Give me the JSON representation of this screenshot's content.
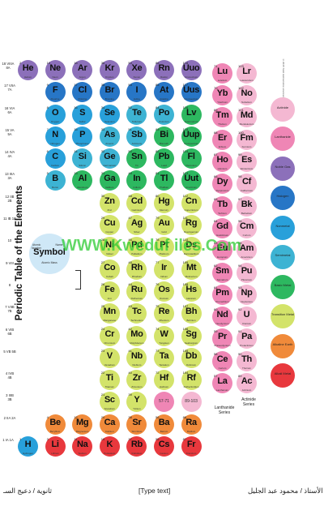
{
  "title": "Periodic Table of the Elements",
  "copyright": "©2015 Todd Helmenstine sciencenotes.org",
  "watermark": "WWW.Kweduf iles.Com",
  "key": {
    "symbol": "Symbol",
    "atomic_number": "Atomic Number",
    "name": "Name",
    "mass": "Atomic Mass"
  },
  "colors": {
    "alkali": "#e8383d",
    "alkaline": "#f08a3a",
    "transition": "#d3e36a",
    "basic_metal": "#2db860",
    "semimetal": "#3db3d3",
    "nonmetal": "#28a0da",
    "halogen": "#2776c6",
    "noble": "#8c70ba",
    "lanthanide": "#ef86b5",
    "actinide": "#f4b8d2",
    "unknown": "#5d87c5"
  },
  "group_labels": [
    {
      "col": 1,
      "text": "1 IA 1A"
    },
    {
      "col": 2,
      "text": "2 IIA 2A"
    },
    {
      "col": 3,
      "text": "3 IIIB 3B"
    },
    {
      "col": 4,
      "text": "4 IVB 4B"
    },
    {
      "col": 5,
      "text": "5 VB 5B"
    },
    {
      "col": 6,
      "text": "6 VIB 6B"
    },
    {
      "col": 7,
      "text": "7 VIIB 7B"
    },
    {
      "col": 8,
      "text": "8"
    },
    {
      "col": 9,
      "text": "9 VIII"
    },
    {
      "col": 10,
      "text": "10"
    },
    {
      "col": 11,
      "text": "11 IB 1B"
    },
    {
      "col": 12,
      "text": "12 IIB 2B"
    },
    {
      "col": 13,
      "text": "13 IIIA 3A"
    },
    {
      "col": 14,
      "text": "14 IVA 4A"
    },
    {
      "col": 15,
      "text": "15 VA 5A"
    },
    {
      "col": 16,
      "text": "16 VIA 6A"
    },
    {
      "col": 17,
      "text": "17 VIIA 7A"
    },
    {
      "col": 18,
      "text": "18 VIIIA 8A"
    }
  ],
  "elements": [
    {
      "n": 1,
      "s": "H",
      "name": "Hydrogen",
      "p": 1,
      "g": 1,
      "c": "nonmetal"
    },
    {
      "n": 2,
      "s": "He",
      "name": "Helium",
      "p": 1,
      "g": 18,
      "c": "noble"
    },
    {
      "n": 3,
      "s": "Li",
      "name": "Lithium",
      "p": 2,
      "g": 1,
      "c": "alkali"
    },
    {
      "n": 4,
      "s": "Be",
      "name": "Beryllium",
      "p": 2,
      "g": 2,
      "c": "alkaline"
    },
    {
      "n": 5,
      "s": "B",
      "name": "Boron",
      "p": 2,
      "g": 13,
      "c": "semimetal"
    },
    {
      "n": 6,
      "s": "C",
      "name": "Carbon",
      "p": 2,
      "g": 14,
      "c": "nonmetal"
    },
    {
      "n": 7,
      "s": "N",
      "name": "Nitrogen",
      "p": 2,
      "g": 15,
      "c": "nonmetal"
    },
    {
      "n": 8,
      "s": "O",
      "name": "Oxygen",
      "p": 2,
      "g": 16,
      "c": "nonmetal"
    },
    {
      "n": 9,
      "s": "F",
      "name": "Fluorine",
      "p": 2,
      "g": 17,
      "c": "halogen"
    },
    {
      "n": 10,
      "s": "Ne",
      "name": "Neon",
      "p": 2,
      "g": 18,
      "c": "noble"
    },
    {
      "n": 11,
      "s": "Na",
      "name": "Sodium",
      "p": 3,
      "g": 1,
      "c": "alkali"
    },
    {
      "n": 12,
      "s": "Mg",
      "name": "Magnesium",
      "p": 3,
      "g": 2,
      "c": "alkaline"
    },
    {
      "n": 13,
      "s": "Al",
      "name": "Aluminum",
      "p": 3,
      "g": 13,
      "c": "basic_metal"
    },
    {
      "n": 14,
      "s": "Si",
      "name": "Silicon",
      "p": 3,
      "g": 14,
      "c": "semimetal"
    },
    {
      "n": 15,
      "s": "P",
      "name": "Phosphorus",
      "p": 3,
      "g": 15,
      "c": "nonmetal"
    },
    {
      "n": 16,
      "s": "S",
      "name": "Sulfur",
      "p": 3,
      "g": 16,
      "c": "nonmetal"
    },
    {
      "n": 17,
      "s": "Cl",
      "name": "Chlorine",
      "p": 3,
      "g": 17,
      "c": "halogen"
    },
    {
      "n": 18,
      "s": "Ar",
      "name": "Argon",
      "p": 3,
      "g": 18,
      "c": "noble"
    },
    {
      "n": 19,
      "s": "K",
      "name": "Potassium",
      "p": 4,
      "g": 1,
      "c": "alkali"
    },
    {
      "n": 20,
      "s": "Ca",
      "name": "Calcium",
      "p": 4,
      "g": 2,
      "c": "alkaline"
    },
    {
      "n": 21,
      "s": "Sc",
      "name": "Scandium",
      "p": 4,
      "g": 3,
      "c": "transition"
    },
    {
      "n": 22,
      "s": "Ti",
      "name": "Titanium",
      "p": 4,
      "g": 4,
      "c": "transition"
    },
    {
      "n": 23,
      "s": "V",
      "name": "Vanadium",
      "p": 4,
      "g": 5,
      "c": "transition"
    },
    {
      "n": 24,
      "s": "Cr",
      "name": "Chromium",
      "p": 4,
      "g": 6,
      "c": "transition"
    },
    {
      "n": 25,
      "s": "Mn",
      "name": "Manganese",
      "p": 4,
      "g": 7,
      "c": "transition"
    },
    {
      "n": 26,
      "s": "Fe",
      "name": "Iron",
      "p": 4,
      "g": 8,
      "c": "transition"
    },
    {
      "n": 27,
      "s": "Co",
      "name": "Cobalt",
      "p": 4,
      "g": 9,
      "c": "transition"
    },
    {
      "n": 28,
      "s": "Ni",
      "name": "Nickel",
      "p": 4,
      "g": 10,
      "c": "transition"
    },
    {
      "n": 29,
      "s": "Cu",
      "name": "Copper",
      "p": 4,
      "g": 11,
      "c": "transition"
    },
    {
      "n": 30,
      "s": "Zn",
      "name": "Zinc",
      "p": 4,
      "g": 12,
      "c": "transition"
    },
    {
      "n": 31,
      "s": "Ga",
      "name": "Gallium",
      "p": 4,
      "g": 13,
      "c": "basic_metal"
    },
    {
      "n": 32,
      "s": "Ge",
      "name": "Germanium",
      "p": 4,
      "g": 14,
      "c": "semimetal"
    },
    {
      "n": 33,
      "s": "As",
      "name": "Arsenic",
      "p": 4,
      "g": 15,
      "c": "semimetal"
    },
    {
      "n": 34,
      "s": "Se",
      "name": "Selenium",
      "p": 4,
      "g": 16,
      "c": "nonmetal"
    },
    {
      "n": 35,
      "s": "Br",
      "name": "Bromine",
      "p": 4,
      "g": 17,
      "c": "halogen"
    },
    {
      "n": 36,
      "s": "Kr",
      "name": "Krypton",
      "p": 4,
      "g": 18,
      "c": "noble"
    },
    {
      "n": 37,
      "s": "Rb",
      "name": "Rubidium",
      "p": 5,
      "g": 1,
      "c": "alkali"
    },
    {
      "n": 38,
      "s": "Sr",
      "name": "Strontium",
      "p": 5,
      "g": 2,
      "c": "alkaline"
    },
    {
      "n": 39,
      "s": "Y",
      "name": "Yttrium",
      "p": 5,
      "g": 3,
      "c": "transition"
    },
    {
      "n": 40,
      "s": "Zr",
      "name": "Zirconium",
      "p": 5,
      "g": 4,
      "c": "transition"
    },
    {
      "n": 41,
      "s": "Nb",
      "name": "Niobium",
      "p": 5,
      "g": 5,
      "c": "transition"
    },
    {
      "n": 42,
      "s": "Mo",
      "name": "Molybdenum",
      "p": 5,
      "g": 6,
      "c": "transition"
    },
    {
      "n": 43,
      "s": "Tc",
      "name": "Technetium",
      "p": 5,
      "g": 7,
      "c": "transition"
    },
    {
      "n": 44,
      "s": "Ru",
      "name": "Ruthenium",
      "p": 5,
      "g": 8,
      "c": "transition"
    },
    {
      "n": 45,
      "s": "Rh",
      "name": "Rhodium",
      "p": 5,
      "g": 9,
      "c": "transition"
    },
    {
      "n": 46,
      "s": "Pd",
      "name": "Palladium",
      "p": 5,
      "g": 10,
      "c": "transition"
    },
    {
      "n": 47,
      "s": "Ag",
      "name": "Silver",
      "p": 5,
      "g": 11,
      "c": "transition"
    },
    {
      "n": 48,
      "s": "Cd",
      "name": "Cadmium",
      "p": 5,
      "g": 12,
      "c": "transition"
    },
    {
      "n": 49,
      "s": "In",
      "name": "Indium",
      "p": 5,
      "g": 13,
      "c": "basic_metal"
    },
    {
      "n": 50,
      "s": "Sn",
      "name": "Tin",
      "p": 5,
      "g": 14,
      "c": "basic_metal"
    },
    {
      "n": 51,
      "s": "Sb",
      "name": "Antimony",
      "p": 5,
      "g": 15,
      "c": "semimetal"
    },
    {
      "n": 52,
      "s": "Te",
      "name": "Tellurium",
      "p": 5,
      "g": 16,
      "c": "semimetal"
    },
    {
      "n": 53,
      "s": "I",
      "name": "Iodine",
      "p": 5,
      "g": 17,
      "c": "halogen"
    },
    {
      "n": 54,
      "s": "Xe",
      "name": "Xenon",
      "p": 5,
      "g": 18,
      "c": "noble"
    },
    {
      "n": 55,
      "s": "Cs",
      "name": "Cesium",
      "p": 6,
      "g": 1,
      "c": "alkali"
    },
    {
      "n": 56,
      "s": "Ba",
      "name": "Barium",
      "p": 6,
      "g": 2,
      "c": "alkaline"
    },
    {
      "n": 72,
      "s": "Hf",
      "name": "Hafnium",
      "p": 6,
      "g": 4,
      "c": "transition"
    },
    {
      "n": 73,
      "s": "Ta",
      "name": "Tantalum",
      "p": 6,
      "g": 5,
      "c": "transition"
    },
    {
      "n": 74,
      "s": "W",
      "name": "Tungsten",
      "p": 6,
      "g": 6,
      "c": "transition"
    },
    {
      "n": 75,
      "s": "Re",
      "name": "Rhenium",
      "p": 6,
      "g": 7,
      "c": "transition"
    },
    {
      "n": 76,
      "s": "Os",
      "name": "Osmium",
      "p": 6,
      "g": 8,
      "c": "transition"
    },
    {
      "n": 77,
      "s": "Ir",
      "name": "Iridium",
      "p": 6,
      "g": 9,
      "c": "transition"
    },
    {
      "n": 78,
      "s": "Pt",
      "name": "Platinum",
      "p": 6,
      "g": 10,
      "c": "transition"
    },
    {
      "n": 79,
      "s": "Au",
      "name": "Gold",
      "p": 6,
      "g": 11,
      "c": "transition"
    },
    {
      "n": 80,
      "s": "Hg",
      "name": "Mercury",
      "p": 6,
      "g": 12,
      "c": "transition"
    },
    {
      "n": 81,
      "s": "Tl",
      "name": "Thallium",
      "p": 6,
      "g": 13,
      "c": "basic_metal"
    },
    {
      "n": 82,
      "s": "Pb",
      "name": "Lead",
      "p": 6,
      "g": 14,
      "c": "basic_metal"
    },
    {
      "n": 83,
      "s": "Bi",
      "name": "Bismuth",
      "p": 6,
      "g": 15,
      "c": "basic_metal"
    },
    {
      "n": 84,
      "s": "Po",
      "name": "Polonium",
      "p": 6,
      "g": 16,
      "c": "semimetal"
    },
    {
      "n": 85,
      "s": "At",
      "name": "Astatine",
      "p": 6,
      "g": 17,
      "c": "halogen"
    },
    {
      "n": 86,
      "s": "Rn",
      "name": "Radon",
      "p": 6,
      "g": 18,
      "c": "noble"
    },
    {
      "n": 87,
      "s": "Fr",
      "name": "Francium",
      "p": 7,
      "g": 1,
      "c": "alkali"
    },
    {
      "n": 88,
      "s": "Ra",
      "name": "Radium",
      "p": 7,
      "g": 2,
      "c": "alkaline"
    },
    {
      "n": 104,
      "s": "Rf",
      "name": "Rutherfordium",
      "p": 7,
      "g": 4,
      "c": "transition"
    },
    {
      "n": 105,
      "s": "Db",
      "name": "Dubnium",
      "p": 7,
      "g": 5,
      "c": "transition"
    },
    {
      "n": 106,
      "s": "Sg",
      "name": "Seaborgium",
      "p": 7,
      "g": 6,
      "c": "transition"
    },
    {
      "n": 107,
      "s": "Bh",
      "name": "Bohrium",
      "p": 7,
      "g": 7,
      "c": "transition"
    },
    {
      "n": 108,
      "s": "Hs",
      "name": "Hassium",
      "p": 7,
      "g": 8,
      "c": "transition"
    },
    {
      "n": 109,
      "s": "Mt",
      "name": "Meitnerium",
      "p": 7,
      "g": 9,
      "c": "transition"
    },
    {
      "n": 110,
      "s": "Ds",
      "name": "Darmstadtium",
      "p": 7,
      "g": 10,
      "c": "transition"
    },
    {
      "n": 111,
      "s": "Rg",
      "name": "Roentgenium",
      "p": 7,
      "g": 11,
      "c": "transition"
    },
    {
      "n": 112,
      "s": "Cn",
      "name": "Copernicium",
      "p": 7,
      "g": 12,
      "c": "transition"
    },
    {
      "n": 113,
      "s": "Uut",
      "name": "Ununtrium",
      "p": 7,
      "g": 13,
      "c": "basic_metal"
    },
    {
      "n": 114,
      "s": "Fl",
      "name": "Flerovium",
      "p": 7,
      "g": 14,
      "c": "basic_metal"
    },
    {
      "n": 115,
      "s": "Uup",
      "name": "Ununpentium",
      "p": 7,
      "g": 15,
      "c": "basic_metal"
    },
    {
      "n": 116,
      "s": "Lv",
      "name": "Livermorium",
      "p": 7,
      "g": 16,
      "c": "basic_metal"
    },
    {
      "n": 117,
      "s": "Uus",
      "name": "Ununseptium",
      "p": 7,
      "g": 17,
      "c": "halogen"
    },
    {
      "n": 118,
      "s": "Uuo",
      "name": "Ununoctium",
      "p": 7,
      "g": 18,
      "c": "noble"
    }
  ],
  "placeholders": [
    {
      "p": 6,
      "g": 3,
      "text": "57-71",
      "c": "lanthanide"
    },
    {
      "p": 7,
      "g": 3,
      "text": "89-103",
      "c": "actinide"
    }
  ],
  "fblock": [
    {
      "n": 57,
      "s": "La",
      "name": "Lanthanum",
      "row": "lan",
      "i": 0
    },
    {
      "n": 58,
      "s": "Ce",
      "name": "Cerium",
      "row": "lan",
      "i": 1
    },
    {
      "n": 59,
      "s": "Pr",
      "name": "Praseodymium",
      "row": "lan",
      "i": 2
    },
    {
      "n": 60,
      "s": "Nd",
      "name": "Neodymium",
      "row": "lan",
      "i": 3
    },
    {
      "n": 61,
      "s": "Pm",
      "name": "Promethium",
      "row": "lan",
      "i": 4
    },
    {
      "n": 62,
      "s": "Sm",
      "name": "Samarium",
      "row": "lan",
      "i": 5
    },
    {
      "n": 63,
      "s": "Eu",
      "name": "Europium",
      "row": "lan",
      "i": 6
    },
    {
      "n": 64,
      "s": "Gd",
      "name": "Gadolinium",
      "row": "lan",
      "i": 7
    },
    {
      "n": 65,
      "s": "Tb",
      "name": "Terbium",
      "row": "lan",
      "i": 8
    },
    {
      "n": 66,
      "s": "Dy",
      "name": "Dysprosium",
      "row": "lan",
      "i": 9
    },
    {
      "n": 67,
      "s": "Ho",
      "name": "Holmium",
      "row": "lan",
      "i": 10
    },
    {
      "n": 68,
      "s": "Er",
      "name": "Erbium",
      "row": "lan",
      "i": 11
    },
    {
      "n": 69,
      "s": "Tm",
      "name": "Thulium",
      "row": "lan",
      "i": 12
    },
    {
      "n": 70,
      "s": "Yb",
      "name": "Ytterbium",
      "row": "lan",
      "i": 13
    },
    {
      "n": 71,
      "s": "Lu",
      "name": "Lutetium",
      "row": "lan",
      "i": 14
    },
    {
      "n": 89,
      "s": "Ac",
      "name": "Actinium",
      "row": "act",
      "i": 0
    },
    {
      "n": 90,
      "s": "Th",
      "name": "Thorium",
      "row": "act",
      "i": 1
    },
    {
      "n": 91,
      "s": "Pa",
      "name": "Protactinium",
      "row": "act",
      "i": 2
    },
    {
      "n": 92,
      "s": "U",
      "name": "Uranium",
      "row": "act",
      "i": 3
    },
    {
      "n": 93,
      "s": "Np",
      "name": "Neptunium",
      "row": "act",
      "i": 4
    },
    {
      "n": 94,
      "s": "Pu",
      "name": "Plutonium",
      "row": "act",
      "i": 5
    },
    {
      "n": 95,
      "s": "Am",
      "name": "Americium",
      "row": "act",
      "i": 6
    },
    {
      "n": 96,
      "s": "Cm",
      "name": "Curium",
      "row": "act",
      "i": 7
    },
    {
      "n": 97,
      "s": "Bk",
      "name": "Berkelium",
      "row": "act",
      "i": 8
    },
    {
      "n": 98,
      "s": "Cf",
      "name": "Californium",
      "row": "act",
      "i": 9
    },
    {
      "n": 99,
      "s": "Es",
      "name": "Einsteinium",
      "row": "act",
      "i": 10
    },
    {
      "n": 100,
      "s": "Fm",
      "name": "Fermium",
      "row": "act",
      "i": 11
    },
    {
      "n": 101,
      "s": "Md",
      "name": "Mendelevium",
      "row": "act",
      "i": 12
    },
    {
      "n": 102,
      "s": "No",
      "name": "Nobelium",
      "row": "act",
      "i": 13
    },
    {
      "n": 103,
      "s": "Lr",
      "name": "Lawrencium",
      "row": "act",
      "i": 14
    }
  ],
  "series_labels": {
    "lanthanide": "Lanthanide Series",
    "actinide": "Actinide Series"
  },
  "legend": [
    {
      "label": "Alkali Metal",
      "c": "alkali"
    },
    {
      "label": "Alkaline Earth",
      "c": "alkaline"
    },
    {
      "label": "Transition Metal",
      "c": "transition"
    },
    {
      "label": "Basic Metal",
      "c": "basic_metal"
    },
    {
      "label": "Semimetal",
      "c": "semimetal"
    },
    {
      "label": "Nonmetal",
      "c": "nonmetal"
    },
    {
      "label": "Halogen",
      "c": "halogen"
    },
    {
      "label": "Noble Gas",
      "c": "noble"
    },
    {
      "label": "Lanthanide",
      "c": "lanthanide"
    },
    {
      "label": "Actinide",
      "c": "actinide"
    }
  ],
  "footer": {
    "left": "ثانوية / دعيج السـ",
    "center": "[Type text]",
    "right": "إعداد الأستاذ / محمود عبد الجليل"
  }
}
